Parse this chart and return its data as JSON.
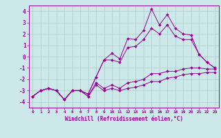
{
  "x": [
    0,
    1,
    2,
    3,
    4,
    5,
    6,
    7,
    8,
    9,
    10,
    11,
    12,
    13,
    14,
    15,
    16,
    17,
    18,
    19,
    20,
    21,
    22,
    23
  ],
  "line1": [
    -3.5,
    -3.0,
    -2.8,
    -3.0,
    -3.8,
    -3.0,
    -3.0,
    -3.3,
    -1.8,
    -0.3,
    0.3,
    -0.2,
    1.6,
    1.5,
    2.3,
    4.2,
    2.8,
    3.7,
    2.5,
    2.0,
    1.9,
    0.2,
    -0.5,
    -1.0
  ],
  "line2": [
    -3.5,
    -3.0,
    -2.8,
    -3.0,
    -3.8,
    -3.0,
    -3.0,
    -3.3,
    -1.8,
    -0.3,
    -0.3,
    -0.5,
    0.8,
    0.9,
    1.5,
    2.5,
    2.0,
    2.8,
    1.8,
    1.5,
    1.5,
    0.2,
    -0.5,
    -1.0
  ],
  "line3": [
    -3.5,
    -3.0,
    -2.8,
    -3.0,
    -3.8,
    -3.0,
    -3.0,
    -3.5,
    -2.3,
    -2.8,
    -2.5,
    -2.8,
    -2.3,
    -2.2,
    -2.0,
    -1.5,
    -1.5,
    -1.3,
    -1.3,
    -1.1,
    -1.0,
    -1.0,
    -1.1,
    -1.1
  ],
  "line4": [
    -3.5,
    -3.0,
    -2.8,
    -3.0,
    -3.8,
    -3.0,
    -3.0,
    -3.5,
    -2.5,
    -3.0,
    -2.8,
    -3.0,
    -2.8,
    -2.7,
    -2.5,
    -2.2,
    -2.2,
    -1.9,
    -1.8,
    -1.6,
    -1.5,
    -1.5,
    -1.4,
    -1.4
  ],
  "color": "#990099",
  "bg_color": "#cce8e8",
  "grid_color": "#aacccc",
  "xlabel": "Windchill (Refroidissement éolien,°C)",
  "xlim": [
    -0.5,
    23.5
  ],
  "ylim": [
    -4.5,
    4.5
  ],
  "yticks": [
    -4,
    -3,
    -2,
    -1,
    0,
    1,
    2,
    3,
    4
  ],
  "xticks": [
    0,
    1,
    2,
    3,
    4,
    5,
    6,
    7,
    8,
    9,
    10,
    11,
    12,
    13,
    14,
    15,
    16,
    17,
    18,
    19,
    20,
    21,
    22,
    23
  ]
}
